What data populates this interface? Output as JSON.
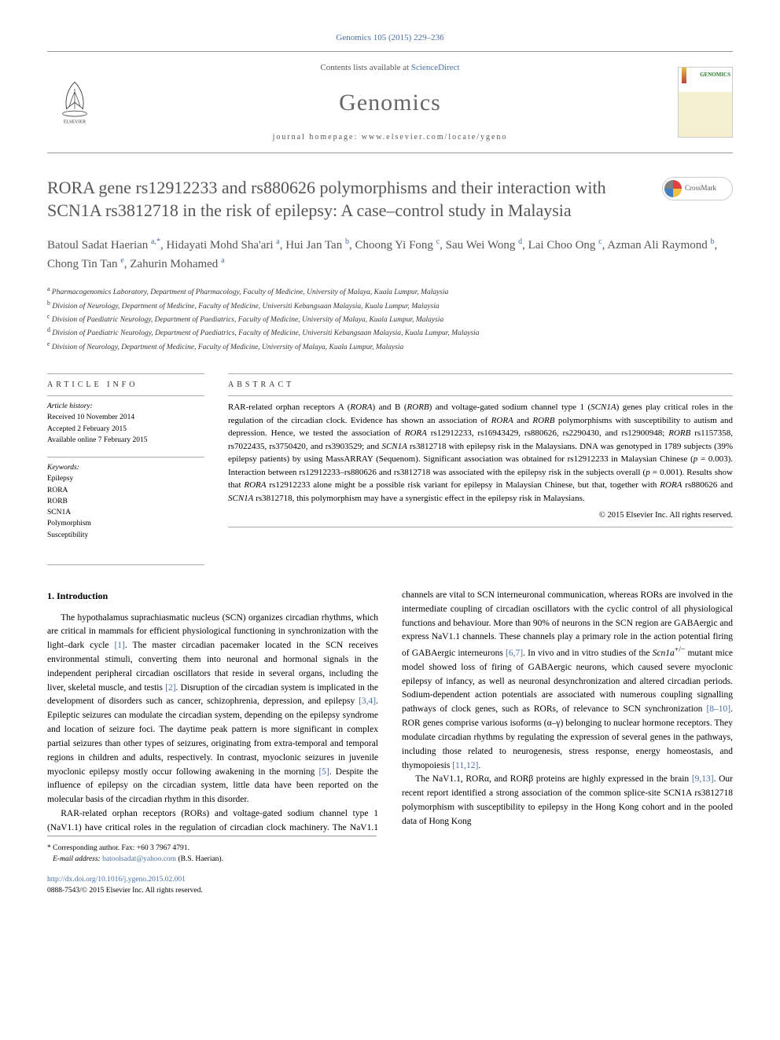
{
  "top_citation": "Genomics 105 (2015) 229–236",
  "header": {
    "contents_prefix": "Contents lists available at ",
    "contents_link": "ScienceDirect",
    "journal": "Genomics",
    "homepage": "journal homepage: www.elsevier.com/locate/ygeno",
    "cover_label": "GENOMICS",
    "crossmark_label": "CrossMark"
  },
  "article": {
    "title": "RORA gene rs12912233 and rs880626 polymorphisms and their interaction with SCN1A rs3812718 in the risk of epilepsy: A case–control study in Malaysia",
    "authors_html": "Batoul Sadat Haerian <sup>a,*</sup>, Hidayati Mohd Sha'ari <sup>a</sup>, Hui Jan Tan <sup>b</sup>, Choong Yi Fong <sup>c</sup>, Sau Wei Wong <sup>d</sup>, Lai Choo Ong <sup>c</sup>, Azman Ali Raymond <sup>b</sup>, Chong Tin Tan <sup>e</sup>, Zahurin Mohamed <sup>a</sup>",
    "affiliations": [
      {
        "sup": "a",
        "text": "Pharmacogenomics Laboratory, Department of Pharmacology, Faculty of Medicine, University of Malaya, Kuala Lumpur, Malaysia"
      },
      {
        "sup": "b",
        "text": "Division of Neurology, Department of Medicine, Faculty of Medicine, Universiti Kebangsaan Malaysia, Kuala Lumpur, Malaysia"
      },
      {
        "sup": "c",
        "text": "Division of Paediatric Neurology, Department of Paediatrics, Faculty of Medicine, University of Malaya, Kuala Lumpur, Malaysia"
      },
      {
        "sup": "d",
        "text": "Division of Paediatric Neurology, Department of Paediatrics, Faculty of Medicine, Universiti Kebangsaan Malaysia, Kuala Lumpur, Malaysia"
      },
      {
        "sup": "e",
        "text": "Division of Neurology, Department of Medicine, Faculty of Medicine, University of Malaya, Kuala Lumpur, Malaysia"
      }
    ]
  },
  "info": {
    "label": "ARTICLE INFO",
    "history_title": "Article history:",
    "history": [
      "Received 10 November 2014",
      "Accepted 2 February 2015",
      "Available online 7 February 2015"
    ],
    "keywords_title": "Keywords:",
    "keywords": [
      "Epilepsy",
      "RORA",
      "RORB",
      "SCN1A",
      "Polymorphism",
      "Susceptibility"
    ]
  },
  "abstract": {
    "label": "ABSTRACT",
    "text": "RAR-related orphan receptors A (RORA) and B (RORB) and voltage-gated sodium channel type 1 (SCN1A) genes play critical roles in the regulation of the circadian clock. Evidence has shown an association of RORA and RORB polymorphisms with susceptibility to autism and depression. Hence, we tested the association of RORA rs12912233, rs16943429, rs880626, rs2290430, and rs12900948; RORB rs1157358, rs7022435, rs3750420, and rs3903529; and SCN1A rs3812718 with epilepsy risk in the Malaysians. DNA was genotyped in 1789 subjects (39% epilepsy patients) by using MassARRAY (Sequenom). Significant association was obtained for rs12912233 in Malaysian Chinese (p = 0.003). Interaction between rs12912233–rs880626 and rs3812718 was associated with the epilepsy risk in the subjects overall (p = 0.001). Results show that RORA rs12912233 alone might be a possible risk variant for epilepsy in Malaysian Chinese, but that, together with RORA rs880626 and SCN1A rs3812718, this polymorphism may have a synergistic effect in the epilepsy risk in Malaysians.",
    "copyright": "© 2015 Elsevier Inc. All rights reserved."
  },
  "body": {
    "intro_heading": "1. Introduction",
    "para1": "The hypothalamus suprachiasmatic nucleus (SCN) organizes circadian rhythms, which are critical in mammals for efficient physiological functioning in synchronization with the light–dark cycle [1]. The master circadian pacemaker located in the SCN receives environmental stimuli, converting them into neuronal and hormonal signals in the independent peripheral circadian oscillators that reside in several organs, including the liver, skeletal muscle, and testis [2]. Disruption of the circadian system is implicated in the development of disorders such as cancer, schizophrenia, depression, and epilepsy [3,4]. Epileptic seizures can modulate the circadian system, depending on the epilepsy syndrome and location of seizure foci. The daytime peak pattern is more significant in complex partial seizures than other types of seizures, originating from extra-temporal and temporal regions in children and adults, respectively. In contrast, myoclonic seizures in juvenile myoclonic epilepsy mostly occur following awakening in the morning [5]. Despite the influence of epilepsy on the circadian system, little data have been reported on the molecular basis of the circadian rhythm in this disorder.",
    "para2": "RAR-related orphan receptors (RORs) and voltage-gated sodium channel type 1 (NaV1.1) have critical roles in the regulation of circadian clock machinery. The NaV1.1 channels are vital to SCN interneuronal communication, whereas RORs are involved in the intermediate coupling of circadian oscillators with the cyclic control of all physiological functions and behaviour. More than 90% of neurons in the SCN region are GABAergic and express NaV1.1 channels. These channels play a primary role in the action potential firing of GABAergic interneurons [6,7]. In vivo and in vitro studies of the Scn1a+/− mutant mice model showed loss of firing of GABAergic neurons, which caused severe myoclonic epilepsy of infancy, as well as neuronal desynchronization and altered circadian periods. Sodium-dependent action potentials are associated with numerous coupling signalling pathways of clock genes, such as RORs, of relevance to SCN synchronization [8–10]. ROR genes comprise various isoforms (α–γ) belonging to nuclear hormone receptors. They modulate circadian rhythms by regulating the expression of several genes in the pathways, including those related to neurogenesis, stress response, energy homeostasis, and thymopoiesis [11,12].",
    "para3": "The NaV1.1, RORα, and RORβ proteins are highly expressed in the brain [9,13]. Our recent report identified a strong association of the common splice-site SCN1A rs3812718 polymorphism with susceptibility to epilepsy in the Hong Kong cohort and in the pooled data of Hong Kong"
  },
  "corresponding": {
    "star": "*",
    "text": "Corresponding author. Fax: +60 3 7967 4791.",
    "email_label": "E-mail address:",
    "email": "batoolsadat@yahoo.com",
    "email_suffix": " (B.S. Haerian)."
  },
  "footer": {
    "doi": "http://dx.doi.org/10.1016/j.ygeno.2015.02.001",
    "issn_line": "0888-7543/© 2015 Elsevier Inc. All rights reserved."
  },
  "colors": {
    "link": "#4a6fa5",
    "gray_text": "#555555",
    "rule": "#999999"
  }
}
